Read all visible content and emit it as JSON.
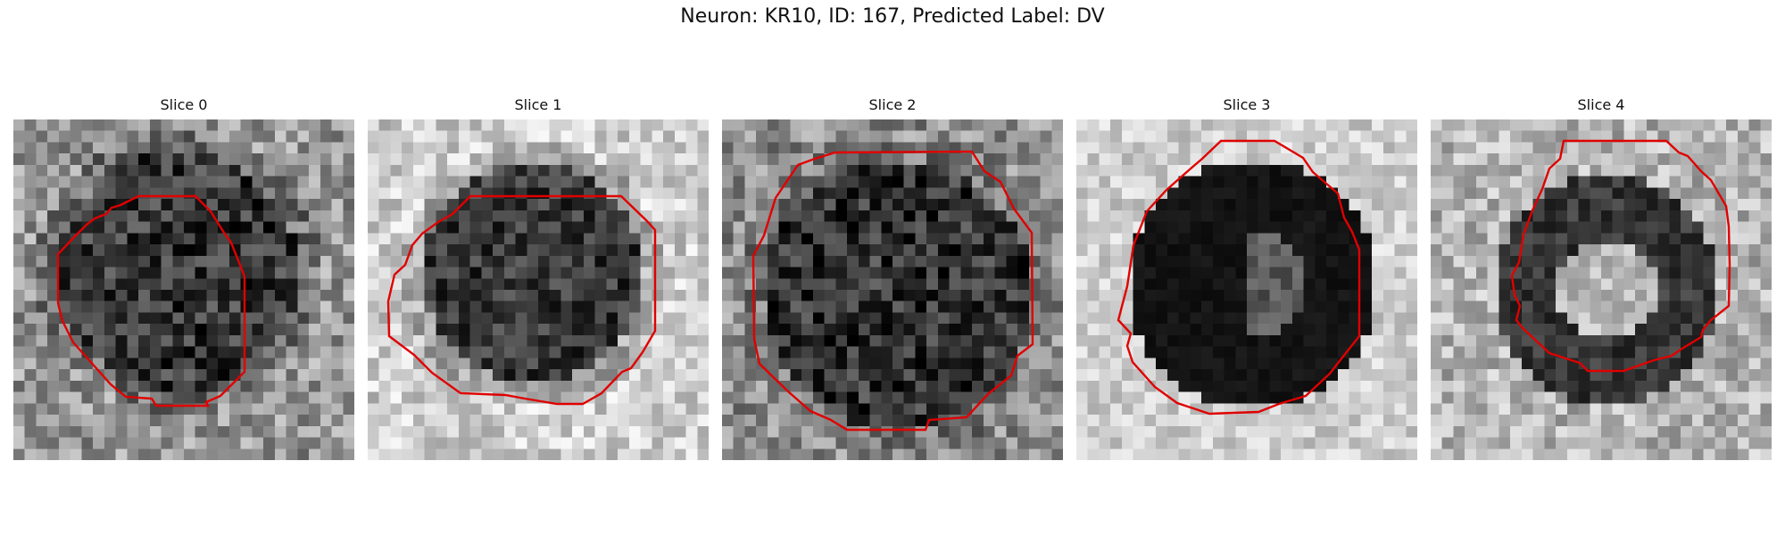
{
  "figure": {
    "title": "Neuron: KR10, ID: 167, Predicted Label: DV",
    "overlay_color": "#e00000"
  },
  "panels": [
    {
      "title": "Slice 0",
      "ring": "light",
      "core": "dark"
    },
    {
      "title": "Slice 1",
      "ring": "bright",
      "core": "dark"
    },
    {
      "title": "Slice 2",
      "ring": "mid",
      "core": "dark"
    },
    {
      "title": "Slice 3",
      "ring": "light",
      "core": "black"
    },
    {
      "title": "Slice 4",
      "ring": "mixed",
      "core": "bright-center"
    }
  ]
}
